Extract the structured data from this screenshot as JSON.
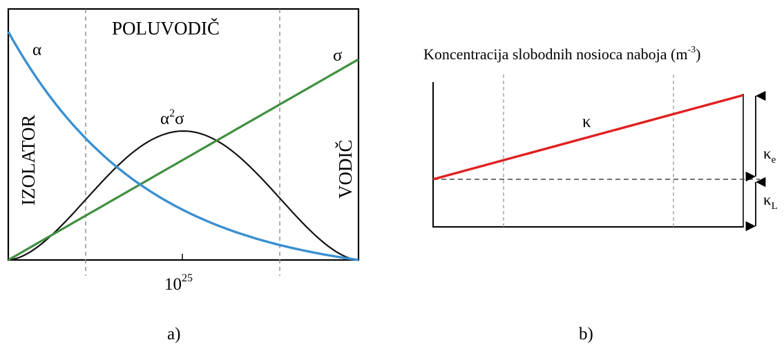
{
  "panel_a": {
    "label": "a)",
    "region_top": "POLUVODIČ",
    "region_left": "IZOLATOR",
    "region_right": "VODIČ",
    "curve_alpha": "α",
    "curve_sigma": "σ",
    "curve_product_base": "α",
    "curve_product_exp": "2",
    "curve_product_tail": "σ",
    "tick_base": "10",
    "tick_exp": "25",
    "colors": {
      "alpha": "#3a8fd0",
      "sigma": "#3f8f3f",
      "product": "#111111"
    }
  },
  "panel_b": {
    "label": "b)",
    "title_main": "Koncentracija slobodnih nosioca naboja (m",
    "title_exp": "-3",
    "title_end": ")",
    "curve_kappa": "κ",
    "kappa_e_base": "κ",
    "kappa_e_sub": "e",
    "kappa_l_base": "κ",
    "kappa_l_sub": "L",
    "colors": {
      "kappa": "#e02020"
    }
  }
}
